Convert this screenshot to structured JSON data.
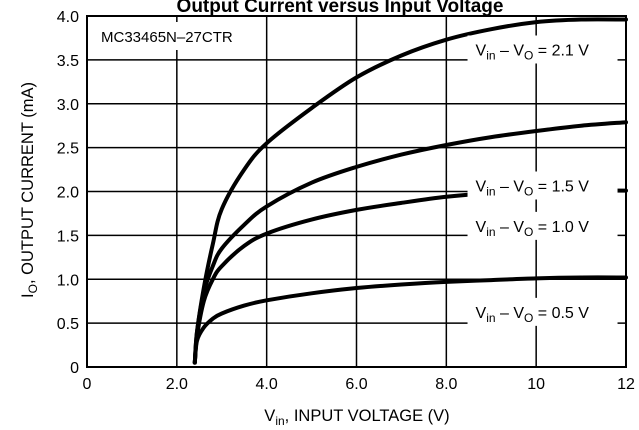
{
  "chart_data": {
    "type": "line",
    "title": "Output Current versus Input Voltage",
    "model_label": "MC33465N–27CTR",
    "xlabel": {
      "main": "V",
      "sub": "in",
      "rest": ", INPUT VOLTAGE (V)"
    },
    "ylabel": {
      "main": "I",
      "sub": "O",
      "rest": ", OUTPUT CURRENT (mA)"
    },
    "xlim": [
      0,
      12
    ],
    "ylim": [
      0,
      4.0
    ],
    "x_ticks": [
      "0",
      "2.0",
      "4.0",
      "6.0",
      "8.0",
      "10",
      "12"
    ],
    "y_ticks": [
      "0",
      "0.5",
      "1.0",
      "1.5",
      "2.0",
      "2.5",
      "3.0",
      "3.5",
      "4.0"
    ],
    "grid": true,
    "series": [
      {
        "label": {
          "v1": "V",
          "s1": "in",
          "mid": " – V",
          "s2": "O",
          "value": " = 2.1 V"
        },
        "points": [
          [
            2.4,
            0.05
          ],
          [
            2.45,
            0.4
          ],
          [
            2.6,
            0.9
          ],
          [
            2.8,
            1.4
          ],
          [
            3.0,
            1.8
          ],
          [
            3.5,
            2.25
          ],
          [
            4.0,
            2.55
          ],
          [
            5.0,
            2.95
          ],
          [
            6.0,
            3.3
          ],
          [
            7.0,
            3.55
          ],
          [
            8.0,
            3.73
          ],
          [
            9.0,
            3.85
          ],
          [
            10.0,
            3.93
          ],
          [
            11.0,
            3.96
          ],
          [
            12.0,
            3.96
          ]
        ]
      },
      {
        "label": {
          "v1": "V",
          "s1": "in",
          "mid": " – V",
          "s2": "O",
          "value": " = 1.5 V"
        },
        "points": [
          [
            2.4,
            0.05
          ],
          [
            2.45,
            0.4
          ],
          [
            2.6,
            0.85
          ],
          [
            2.8,
            1.15
          ],
          [
            3.0,
            1.35
          ],
          [
            3.5,
            1.62
          ],
          [
            4.0,
            1.83
          ],
          [
            5.0,
            2.1
          ],
          [
            6.0,
            2.28
          ],
          [
            7.0,
            2.42
          ],
          [
            8.0,
            2.53
          ],
          [
            9.0,
            2.62
          ],
          [
            10.0,
            2.69
          ],
          [
            11.0,
            2.75
          ],
          [
            12.0,
            2.79
          ]
        ]
      },
      {
        "label": {
          "v1": "V",
          "s1": "in",
          "mid": " – V",
          "s2": "O",
          "value": " = 1.0 V"
        },
        "points": [
          [
            2.4,
            0.05
          ],
          [
            2.45,
            0.35
          ],
          [
            2.6,
            0.75
          ],
          [
            2.8,
            1.0
          ],
          [
            3.0,
            1.15
          ],
          [
            3.5,
            1.38
          ],
          [
            4.0,
            1.52
          ],
          [
            5.0,
            1.68
          ],
          [
            6.0,
            1.79
          ],
          [
            7.0,
            1.87
          ],
          [
            8.0,
            1.94
          ],
          [
            9.0,
            1.98
          ],
          [
            10.0,
            2.0
          ],
          [
            11.0,
            2.01
          ],
          [
            12.0,
            2.01
          ]
        ]
      },
      {
        "label": {
          "v1": "V",
          "s1": "in",
          "mid": " – V",
          "s2": "O",
          "value": " = 0.5 V"
        },
        "points": [
          [
            2.4,
            0.05
          ],
          [
            2.45,
            0.3
          ],
          [
            2.6,
            0.45
          ],
          [
            2.8,
            0.55
          ],
          [
            3.0,
            0.61
          ],
          [
            3.5,
            0.7
          ],
          [
            4.0,
            0.76
          ],
          [
            5.0,
            0.84
          ],
          [
            6.0,
            0.9
          ],
          [
            7.0,
            0.94
          ],
          [
            8.0,
            0.97
          ],
          [
            9.0,
            0.99
          ],
          [
            10.0,
            1.01
          ],
          [
            11.0,
            1.02
          ],
          [
            12.0,
            1.02
          ]
        ]
      }
    ]
  }
}
